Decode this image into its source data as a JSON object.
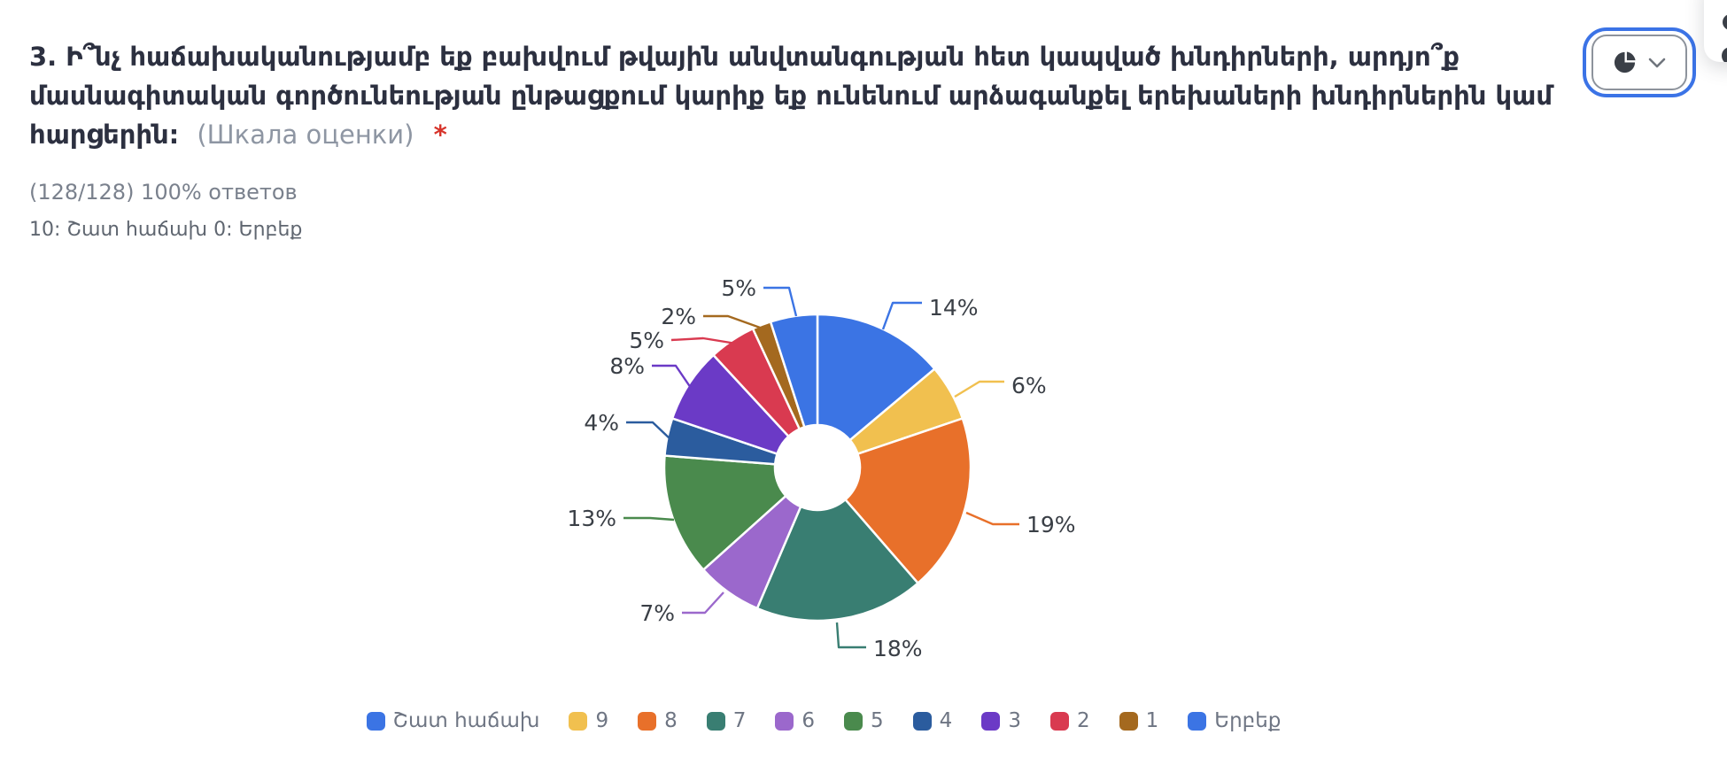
{
  "header": {
    "title_lines": [
      "3. Ի՞նչ հաճախականությամբ եք բախվում թվային անվտանգության հետ կապված խնդիրների, արդյո՞ք",
      "մասնագիտական գործունեության ընթացքում կարիք եք ունենում արձագանքել երեխաների խնդիրներին կամ",
      "հարցերին:"
    ],
    "scale_note": "(Шкала оценки)",
    "required_mark": "*",
    "responses_stat": "(128/128) 100% ответов",
    "scale_hint": "10: Շատ հաճախ 0: Երբեք"
  },
  "toolbar": {
    "chart_type_selector": {
      "selected_type": "pie",
      "icon": "pie-chart-icon",
      "chevron": "chevron-down-icon",
      "focus_ring_color": "#3b73e6"
    }
  },
  "chart_data": {
    "type": "pie",
    "donut": true,
    "start_angle_deg": 0,
    "direction": "clockwise",
    "legend_position": "bottom",
    "slices": [
      {
        "label": "Շատ հաճախ",
        "value_pct": 14,
        "display": "14%",
        "color": "#3b74e4"
      },
      {
        "label": "9",
        "value_pct": 6,
        "display": "6%",
        "color": "#f1c04f"
      },
      {
        "label": "8",
        "value_pct": 19,
        "display": "19%",
        "color": "#e8702a"
      },
      {
        "label": "7",
        "value_pct": 18,
        "display": "18%",
        "color": "#397e72"
      },
      {
        "label": "6",
        "value_pct": 7,
        "display": "7%",
        "color": "#9b68cc"
      },
      {
        "label": "5",
        "value_pct": 13,
        "display": "13%",
        "color": "#4a8a4d"
      },
      {
        "label": "4",
        "value_pct": 4,
        "display": "4%",
        "color": "#2b5c9e"
      },
      {
        "label": "3",
        "value_pct": 8,
        "display": "8%",
        "color": "#6b3ac6"
      },
      {
        "label": "2",
        "value_pct": 5,
        "display": "5%",
        "color": "#d93a50"
      },
      {
        "label": "1",
        "value_pct": 2,
        "display": "2%",
        "color": "#a4691f"
      },
      {
        "label": "Երբեք",
        "value_pct": 5,
        "display": "5%",
        "color": "#3b74e4"
      }
    ],
    "label_text_color": "#3a3f46"
  }
}
